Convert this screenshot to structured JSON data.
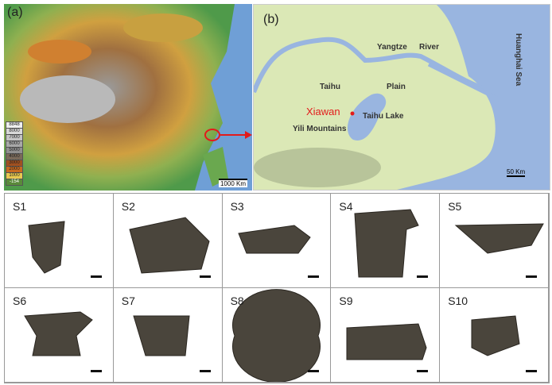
{
  "panel_a": {
    "label": "(a)",
    "scale": "1000 Km",
    "legend": [
      "8848",
      "8000",
      "7000",
      "6000",
      "5000",
      "4000",
      "3000",
      "2000",
      "1000",
      "-154"
    ],
    "legend_colors": [
      "#eeeeee",
      "#d8d8d8",
      "#c4c4c4",
      "#a8a8a8",
      "#909090",
      "#7a6a5a",
      "#7a3a1a",
      "#b86020",
      "#e8c850",
      "#5a8a3a"
    ]
  },
  "panel_b": {
    "label": "(b)",
    "labels": {
      "river": "Yangtze",
      "river2": "River",
      "taihu": "Taihu",
      "plain": "Plain",
      "site": "Xiawan",
      "lake": "Taihu Lake",
      "mountains": "Yili Mountains",
      "sea": "Huanghai Sea"
    },
    "scale": "50 Km",
    "site_color": "#e31b1b"
  },
  "samples": [
    "S1",
    "S2",
    "S3",
    "S4",
    "S5",
    "S6",
    "S7",
    "S8",
    "S9",
    "S10"
  ]
}
